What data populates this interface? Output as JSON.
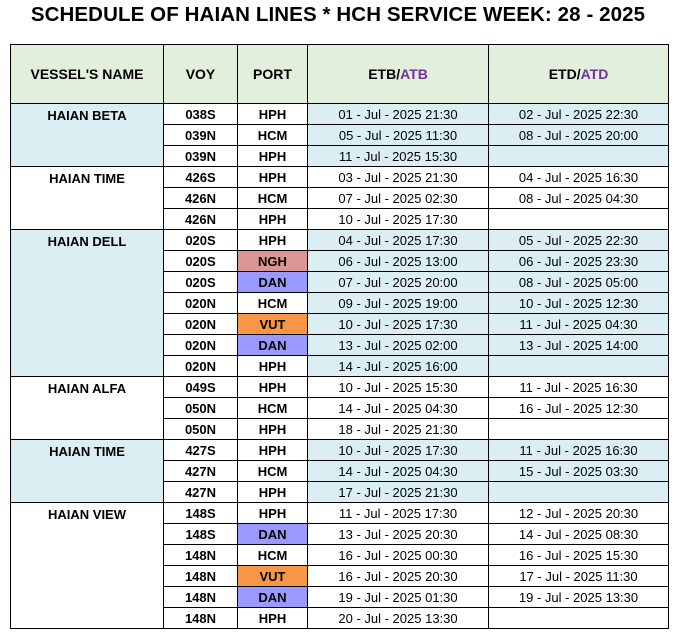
{
  "title": "SCHEDULE OF HAIAN LINES * HCH SERVICE WEEK: 28 - 2025",
  "headers": {
    "vessel": "VESSEL'S NAME",
    "voy": "VOY",
    "port": "PORT",
    "etb_prefix": "ETB/",
    "etb_accent": "ATB",
    "etd_prefix": "ETD/",
    "etd_accent": "ATD"
  },
  "colors": {
    "header_bg": "#e2efda",
    "row_blue": "#daeef3",
    "accent_text": "#7030a0",
    "port_ngh": "#da9694",
    "port_dan": "#9999ff",
    "port_vut": "#f79646"
  },
  "groups": [
    {
      "vessel": "HAIAN BETA",
      "shade": "blue",
      "rows": [
        {
          "voy": "038S",
          "port": "HPH",
          "etb": "01 - Jul - 2025  21:30",
          "etd": "02 - Jul - 2025  22:30"
        },
        {
          "voy": "039N",
          "port": "HCM",
          "etb": "05 - Jul - 2025  11:30",
          "etd": "08 - Jul - 2025  20:00"
        },
        {
          "voy": "039N",
          "port": "HPH",
          "etb": "11 - Jul - 2025  15:30",
          "etd": ""
        }
      ]
    },
    {
      "vessel": "HAIAN TIME",
      "shade": "white",
      "rows": [
        {
          "voy": "426S",
          "port": "HPH",
          "etb": "03 - Jul - 2025  21:30",
          "etd": "04 - Jul - 2025  16:30"
        },
        {
          "voy": "426N",
          "port": "HCM",
          "etb": "07 - Jul - 2025  02:30",
          "etd": "08 - Jul - 2025  04:30"
        },
        {
          "voy": "426N",
          "port": "HPH",
          "etb": "10 - Jul - 2025  17:30",
          "etd": ""
        }
      ]
    },
    {
      "vessel": "HAIAN DELL",
      "shade": "blue",
      "rows": [
        {
          "voy": "020S",
          "port": "HPH",
          "etb": "04 - Jul - 2025  17:30",
          "etd": "05 - Jul - 2025  22:30"
        },
        {
          "voy": "020S",
          "port": "NGH",
          "etb": "06 - Jul - 2025  13:00",
          "etd": "06 - Jul - 2025  23:30"
        },
        {
          "voy": "020S",
          "port": "DAN",
          "etb": "07 - Jul - 2025  20:00",
          "etd": "08 - Jul - 2025  05:00"
        },
        {
          "voy": "020N",
          "port": "HCM",
          "etb": "09 - Jul - 2025  19:00",
          "etd": "10 - Jul - 2025  12:30"
        },
        {
          "voy": "020N",
          "port": "VUT",
          "etb": "10 - Jul - 2025  17:30",
          "etd": "11 - Jul - 2025  04:30"
        },
        {
          "voy": "020N",
          "port": "DAN",
          "etb": "13 - Jul - 2025  02:00",
          "etd": "13 - Jul - 2025  14:00"
        },
        {
          "voy": "020N",
          "port": "HPH",
          "etb": "14 - Jul - 2025  16:00",
          "etd": ""
        }
      ]
    },
    {
      "vessel": "HAIAN ALFA",
      "shade": "white",
      "rows": [
        {
          "voy": "049S",
          "port": "HPH",
          "etb": "10 - Jul - 2025  15:30",
          "etd": "11 - Jul - 2025  16:30"
        },
        {
          "voy": "050N",
          "port": "HCM",
          "etb": "14 - Jul - 2025  04:30",
          "etd": "16 - Jul - 2025  12:30"
        },
        {
          "voy": "050N",
          "port": "HPH",
          "etb": "18 - Jul - 2025  21:30",
          "etd": ""
        }
      ]
    },
    {
      "vessel": "HAIAN TIME",
      "shade": "blue",
      "rows": [
        {
          "voy": "427S",
          "port": "HPH",
          "etb": "10 - Jul - 2025  17:30",
          "etd": "11 - Jul - 2025  16:30"
        },
        {
          "voy": "427N",
          "port": "HCM",
          "etb": "14 - Jul - 2025  04:30",
          "etd": "15 - Jul - 2025  03:30"
        },
        {
          "voy": "427N",
          "port": "HPH",
          "etb": "17 - Jul - 2025  21:30",
          "etd": ""
        }
      ]
    },
    {
      "vessel": "HAIAN VIEW",
      "shade": "white",
      "rows": [
        {
          "voy": "148S",
          "port": "HPH",
          "etb": "11 - Jul - 2025  17:30",
          "etd": "12 - Jul - 2025  20:30"
        },
        {
          "voy": "148S",
          "port": "DAN",
          "etb": "13 - Jul - 2025  20:30",
          "etd": "14 - Jul - 2025  08:30"
        },
        {
          "voy": "148N",
          "port": "HCM",
          "etb": "16 - Jul - 2025  00:30",
          "etd": "16 - Jul - 2025  15:30"
        },
        {
          "voy": "148N",
          "port": "VUT",
          "etb": "16 - Jul - 2025  20:30",
          "etd": "17 - Jul - 2025  11:30"
        },
        {
          "voy": "148N",
          "port": "DAN",
          "etb": "19 - Jul - 2025  01:30",
          "etd": "19 - Jul - 2025  13:30"
        },
        {
          "voy": "148N",
          "port": "HPH",
          "etb": "20 - Jul - 2025  13:30",
          "etd": ""
        }
      ]
    }
  ]
}
